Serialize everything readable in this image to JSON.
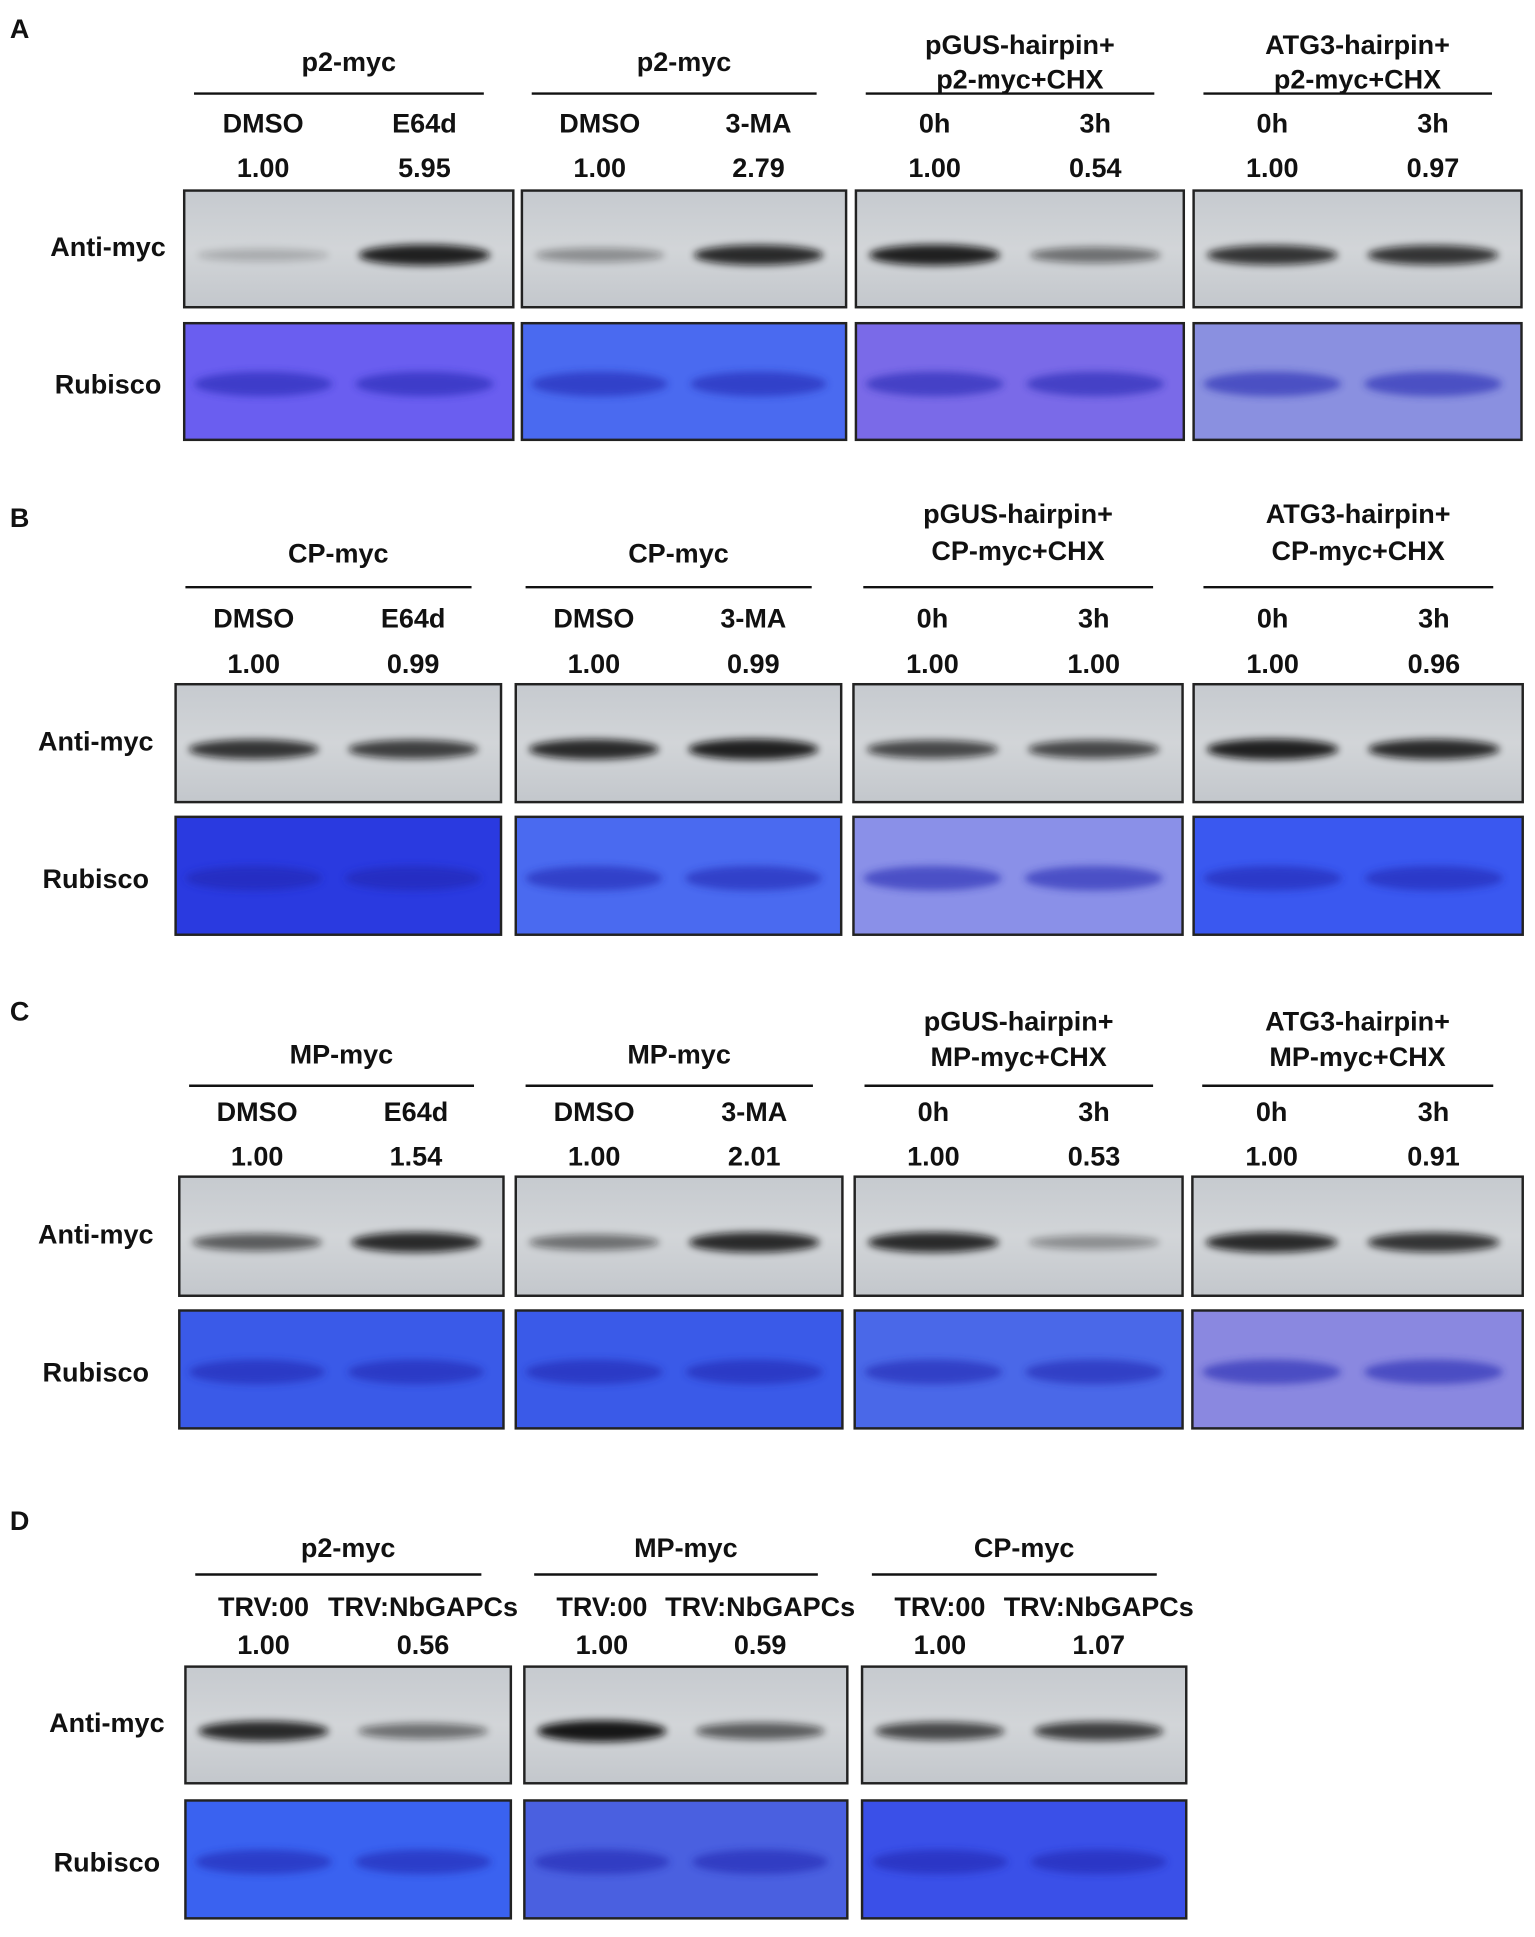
{
  "panels": [
    {
      "letter": "A",
      "row_labels": [
        "Anti-myc",
        "Rubisco"
      ],
      "groups": [
        {
          "title": [
            "p2-myc"
          ],
          "lanes": [
            "DMSO",
            "E64d"
          ],
          "values": [
            "1.00",
            "5.95"
          ]
        },
        {
          "title": [
            "p2-myc"
          ],
          "lanes": [
            "DMSO",
            "3-MA"
          ],
          "values": [
            "1.00",
            "2.79"
          ]
        },
        {
          "title": [
            "pGUS-hairpin+",
            "p2-myc+CHX"
          ],
          "lanes": [
            "0h",
            "3h"
          ],
          "values": [
            "1.00",
            "0.54"
          ]
        },
        {
          "title": [
            "ATG3-hairpin+",
            "p2-myc+CHX"
          ],
          "lanes": [
            "0h",
            "3h"
          ],
          "values": [
            "1.00",
            "0.97"
          ]
        }
      ]
    },
    {
      "letter": "B",
      "row_labels": [
        "Anti-myc",
        "Rubisco"
      ],
      "groups": [
        {
          "title": [
            "CP-myc"
          ],
          "lanes": [
            "DMSO",
            "E64d"
          ],
          "values": [
            "1.00",
            "0.99"
          ]
        },
        {
          "title": [
            "CP-myc"
          ],
          "lanes": [
            "DMSO",
            "3-MA"
          ],
          "values": [
            "1.00",
            "0.99"
          ]
        },
        {
          "title": [
            "pGUS-hairpin+",
            "CP-myc+CHX"
          ],
          "lanes": [
            "0h",
            "3h"
          ],
          "values": [
            "1.00",
            "1.00"
          ]
        },
        {
          "title": [
            "ATG3-hairpin+",
            "CP-myc+CHX"
          ],
          "lanes": [
            "0h",
            "3h"
          ],
          "values": [
            "1.00",
            "0.96"
          ]
        }
      ]
    },
    {
      "letter": "C",
      "row_labels": [
        "Anti-myc",
        "Rubisco"
      ],
      "groups": [
        {
          "title": [
            "MP-myc"
          ],
          "lanes": [
            "DMSO",
            "E64d"
          ],
          "values": [
            "1.00",
            "1.54"
          ]
        },
        {
          "title": [
            "MP-myc"
          ],
          "lanes": [
            "DMSO",
            "3-MA"
          ],
          "values": [
            "1.00",
            "2.01"
          ]
        },
        {
          "title": [
            "pGUS-hairpin+",
            "MP-myc+CHX"
          ],
          "lanes": [
            "0h",
            "3h"
          ],
          "values": [
            "1.00",
            "0.53"
          ]
        },
        {
          "title": [
            "ATG3-hairpin+",
            "MP-myc+CHX"
          ],
          "lanes": [
            "0h",
            "3h"
          ],
          "values": [
            "1.00",
            "0.91"
          ]
        }
      ]
    },
    {
      "letter": "D",
      "row_labels": [
        "Anti-myc",
        "Rubisco"
      ],
      "groups": [
        {
          "title": [
            "p2-myc"
          ],
          "lanes": [
            "TRV:00",
            "TRV:NbGAPCs"
          ],
          "values": [
            "1.00",
            "0.56"
          ]
        },
        {
          "title": [
            "MP-myc"
          ],
          "lanes": [
            "TRV:00",
            "TRV:NbGAPCs"
          ],
          "values": [
            "1.00",
            "0.59"
          ]
        },
        {
          "title": [
            "CP-myc"
          ],
          "lanes": [
            "TRV:00",
            "TRV:NbGAPCs"
          ],
          "values": [
            "1.00",
            "1.07"
          ]
        }
      ]
    }
  ]
}
